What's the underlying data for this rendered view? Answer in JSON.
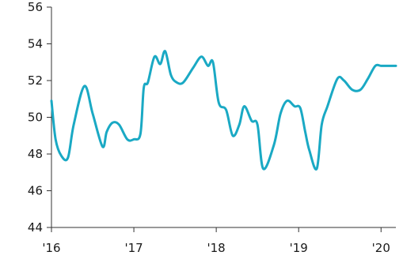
{
  "chart_data": {
    "type": "line",
    "title": "",
    "xlabel": "",
    "ylabel": "",
    "ylim": [
      44,
      56
    ],
    "yticks": [
      44,
      46,
      48,
      50,
      52,
      54,
      56
    ],
    "ytick_labels": [
      "44",
      "46",
      "48",
      "50",
      "52",
      "54",
      "56"
    ],
    "xlim": [
      2016.0,
      2020.18
    ],
    "xticks": [
      2016,
      2017,
      2018,
      2019,
      2020
    ],
    "xtick_labels": [
      "'16",
      "'17",
      "'18",
      "'19",
      "'20"
    ],
    "grid": false,
    "legend": "none",
    "series": [
      {
        "color": "#1aa9c4",
        "x": [
          2016.0,
          2016.05,
          2016.12,
          2016.2,
          2016.27,
          2016.4,
          2016.5,
          2016.62,
          2016.67,
          2016.74,
          2016.82,
          2016.92,
          2017.0,
          2017.08,
          2017.12,
          2017.17,
          2017.25,
          2017.32,
          2017.38,
          2017.45,
          2017.52,
          2017.6,
          2017.72,
          2017.82,
          2017.9,
          2017.96,
          2018.03,
          2018.12,
          2018.2,
          2018.28,
          2018.34,
          2018.43,
          2018.5,
          2018.57,
          2018.7,
          2018.78,
          2018.86,
          2018.95,
          2019.02,
          2019.08,
          2019.13,
          2019.22,
          2019.28,
          2019.35,
          2019.47,
          2019.55,
          2019.65,
          2019.75,
          2019.84,
          2019.93,
          2020.0,
          2020.08,
          2020.18
        ],
        "values": [
          50.9,
          48.8,
          47.9,
          47.8,
          49.6,
          51.7,
          50.2,
          48.4,
          49.2,
          49.7,
          49.6,
          48.8,
          48.8,
          49.1,
          51.6,
          51.9,
          53.3,
          52.9,
          53.6,
          52.3,
          51.9,
          51.9,
          52.7,
          53.3,
          52.8,
          53.0,
          50.8,
          50.4,
          49.0,
          49.6,
          50.6,
          49.8,
          49.6,
          47.2,
          48.5,
          50.2,
          50.9,
          50.6,
          50.5,
          49.2,
          48.2,
          47.2,
          49.6,
          50.6,
          52.1,
          52.0,
          51.5,
          51.5,
          52.1,
          52.8,
          52.8,
          52.8,
          52.8
        ]
      }
    ]
  }
}
